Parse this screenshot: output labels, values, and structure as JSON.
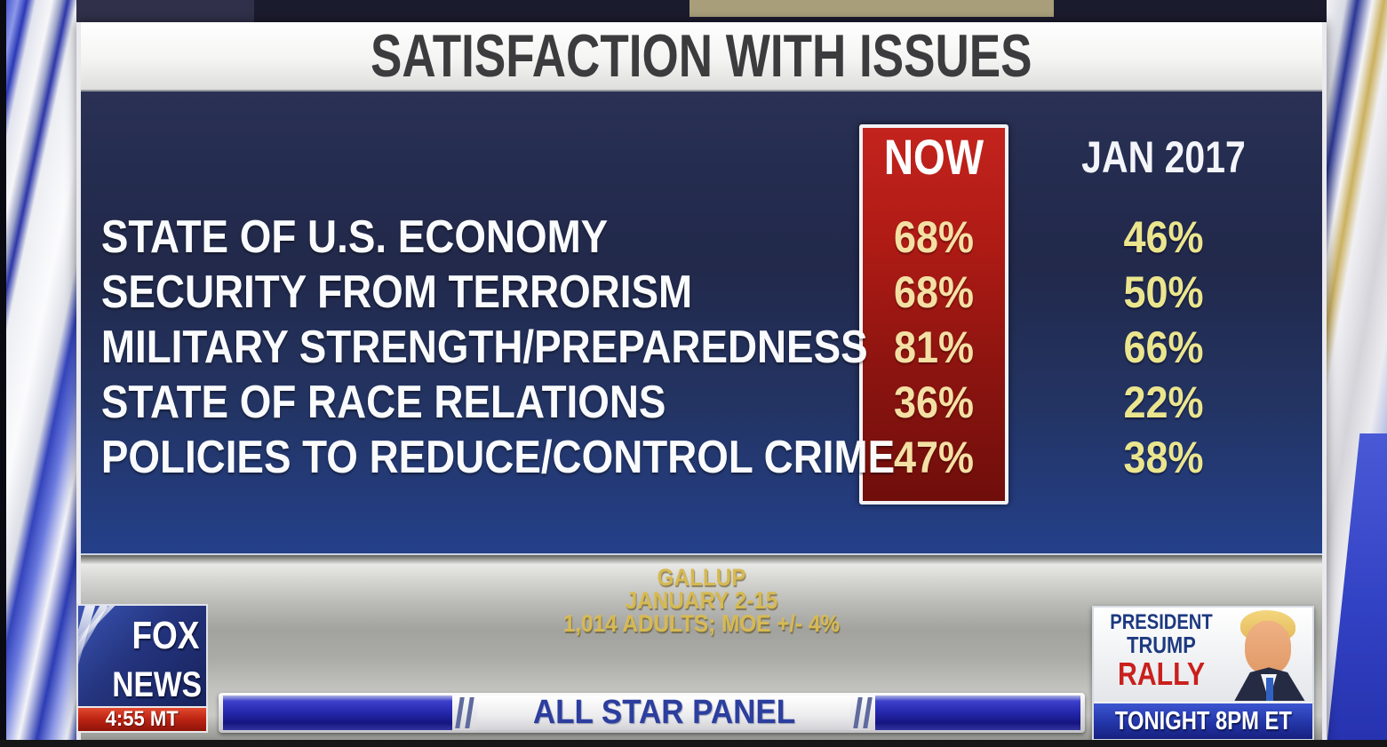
{
  "header": {
    "title": "SATISFACTION WITH ISSUES"
  },
  "poll_table": {
    "now_header": "NOW",
    "jan_header": "JAN 2017",
    "rows": [
      {
        "label": "STATE OF U.S. ECONOMY",
        "now": "68%",
        "jan": "46%"
      },
      {
        "label": "SECURITY FROM TERRORISM",
        "now": "68%",
        "jan": "50%"
      },
      {
        "label": "MILITARY STRENGTH/PREPAREDNESS",
        "now": "81%",
        "jan": "66%"
      },
      {
        "label": "STATE OF RACE RELATIONS",
        "now": "36%",
        "jan": "22%"
      },
      {
        "label": "POLICIES TO REDUCE/CONTROL CRIME",
        "now": "47%",
        "jan": "38%"
      }
    ]
  },
  "source": {
    "line1": "GALLUP",
    "line2": "JANUARY 2-15",
    "line3": "1,014 ADULTS; MOE +/- 4%"
  },
  "fox_bug": {
    "network_top": "FOX",
    "network_bottom": "NEWS",
    "time": "4:55 MT"
  },
  "banner": {
    "label": "ALL STAR PANEL"
  },
  "promo": {
    "line1": "PRESIDENT",
    "line2": "TRUMP",
    "line3": "RALLY",
    "schedule": "TONIGHT 8PM ET"
  },
  "colors": {
    "panel_navy_top": "#272e50",
    "panel_navy_bottom": "#24408a",
    "now_box_red": "#b01b15",
    "now_value_text": "#f4e0a4",
    "jan_value_text": "#ebe58e",
    "row_label_text": "#fafbfd",
    "source_gold": "#d6b952",
    "banner_blue": "#2628ae",
    "banner_text_blue": "#2c3e9e",
    "fox_logo_blue": "#24347e",
    "time_bar_red": "#c02614",
    "promo_headline_blue": "#1d3a80",
    "promo_rally_red": "#c9201d",
    "promo_schedule_blue": "#2336a8"
  },
  "chart_data": {
    "type": "table",
    "title": "SATISFACTION WITH ISSUES",
    "columns": [
      "NOW",
      "JAN 2017"
    ],
    "categories": [
      "STATE OF U.S. ECONOMY",
      "SECURITY FROM TERRORISM",
      "MILITARY STRENGTH/PREPAREDNESS",
      "STATE OF RACE RELATIONS",
      "POLICIES TO REDUCE/CONTROL CRIME"
    ],
    "series": [
      {
        "name": "NOW",
        "values": [
          68,
          68,
          81,
          36,
          47
        ]
      },
      {
        "name": "JAN 2017",
        "values": [
          46,
          50,
          66,
          22,
          38
        ]
      }
    ],
    "unit": "%",
    "source": "GALLUP, JANUARY 2-15, 1,014 ADULTS; MOE +/- 4%"
  }
}
